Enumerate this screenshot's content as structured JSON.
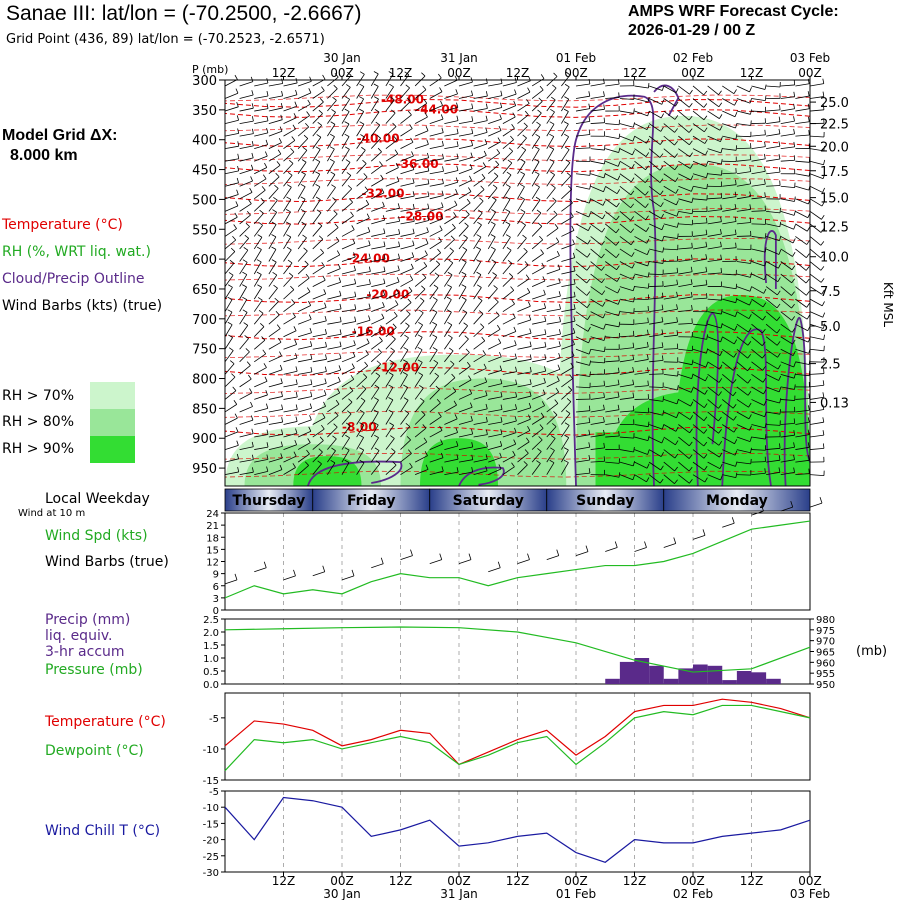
{
  "header": {
    "title": "Sanae III:  lat/lon = (-70.2500, -2.6667)",
    "grid_point": "Grid Point (436, 89) lat/lon = (-70.2523, -2.6571)",
    "cycle_line1": "AMPS WRF Forecast Cycle:",
    "cycle_line2": "2026-01-29 / 00  Z"
  },
  "colors": {
    "temperature": "#e00000",
    "rh": "#22bb22",
    "cloud_outline": "#5a2a8a",
    "wind_chill": "#1a1aa0",
    "precip": "#5a2a8a",
    "rh70": "#ccf5cc",
    "rh80": "#99e699",
    "rh90": "#33dd33",
    "weekday_bar": "#3a4f9a"
  },
  "time_axis": {
    "top_ticks": [
      "12Z",
      "00Z",
      "12Z",
      "00Z",
      "12Z",
      "00Z",
      "12Z",
      "00Z",
      "12Z",
      "00Z"
    ],
    "dates": [
      "30 Jan",
      "31 Jan",
      "01 Feb",
      "02 Feb",
      "03 Feb"
    ],
    "weekdays": [
      "Thursday",
      "Friday",
      "Saturday",
      "Sunday",
      "Monday"
    ]
  },
  "left_labels": {
    "model_grid_1": "Model Grid ΔX:",
    "model_grid_2": "8.000 km",
    "temperature": "Temperature (°C)",
    "rh": "RH (%, WRT liq. wat.)",
    "cloud": "Cloud/Precip Outline",
    "wind_barbs": "Wind Barbs (kts) (true)",
    "rh70": "RH > 70%",
    "rh80": "RH > 80%",
    "rh90": "RH > 90%",
    "local_weekday": "Local Weekday",
    "wind_10m": "Wind at 10 m",
    "wind_spd": "Wind Spd (kts)",
    "wind_barbs2": "Wind Barbs (true)",
    "precip1": "Precip (mm)",
    "precip2": "liq. equiv.",
    "precip3": "3-hr accum",
    "pressure": "Pressure (mb)",
    "temp2": "Temperature (°C)",
    "dewpoint": "Dewpoint (°C)",
    "windchill": "Wind Chill T (°C)"
  },
  "chart_data": [
    {
      "type": "heatmap",
      "name": "cross-section",
      "p_label": "P (mb)",
      "y_right_label": "Kft MSL",
      "pressure_ticks": [
        300,
        350,
        400,
        450,
        500,
        550,
        600,
        650,
        700,
        750,
        800,
        850,
        900,
        950
      ],
      "height_ticks": [
        "25.0",
        "22.5",
        "20.0",
        "17.5",
        "15.0",
        "12.5",
        "10.0",
        "7.5",
        "5.0",
        "2.5",
        "0.13"
      ],
      "height_levels_mb": [
        337,
        373,
        411,
        452,
        497,
        545,
        596,
        653,
        712,
        775,
        840,
        970
      ],
      "temperature_labels": [
        {
          "t": "-48.00",
          "h": 32,
          "p": 339
        },
        {
          "t": "-44.00",
          "h": 39,
          "p": 356
        },
        {
          "t": "-40.00",
          "h": 27,
          "p": 405
        },
        {
          "t": "-36.00",
          "h": 35,
          "p": 447
        },
        {
          "t": "-32.00",
          "h": 28,
          "p": 497
        },
        {
          "t": "-28.00",
          "h": 36,
          "p": 535
        },
        {
          "t": "-24.00",
          "h": 25,
          "p": 606
        },
        {
          "t": "-20.00",
          "h": 29,
          "p": 666
        },
        {
          "t": "-16.00",
          "h": 26,
          "p": 728
        },
        {
          "t": "-12.00",
          "h": 31,
          "p": 788
        },
        {
          "t": "-8.00",
          "h": 24,
          "p": 888
        }
      ]
    },
    {
      "type": "line",
      "name": "wind",
      "ylim": [
        0,
        24
      ],
      "yticks": [
        0,
        3,
        6,
        9,
        12,
        15,
        18,
        21,
        24
      ],
      "x_hours": [
        0,
        6,
        12,
        18,
        24,
        30,
        36,
        42,
        48,
        54,
        60,
        66,
        72,
        78,
        84,
        90,
        96,
        102,
        108,
        114,
        120
      ],
      "series": [
        {
          "values": [
            3,
            6,
            4,
            5,
            4,
            7,
            9,
            8,
            8,
            6,
            8,
            9,
            10,
            11,
            11,
            12,
            14,
            17,
            20,
            21,
            22
          ]
        }
      ]
    },
    {
      "type": "bar",
      "name": "precip-pressure",
      "ylim_precip": [
        0,
        2.5
      ],
      "precip_ticks": [
        "0.0",
        "0.5",
        "1.0",
        "1.5",
        "2.0",
        "2.5"
      ],
      "ylim_pressure": [
        950,
        980
      ],
      "pressure_ticks": [
        950,
        955,
        960,
        965,
        970,
        975,
        980
      ],
      "pressure_unit": "(mb)",
      "precip_bars": [
        {
          "start": 78,
          "end": 81,
          "value": 0.2
        },
        {
          "start": 81,
          "end": 84,
          "value": 0.85
        },
        {
          "start": 84,
          "end": 87,
          "value": 1.0
        },
        {
          "start": 87,
          "end": 90,
          "value": 0.7
        },
        {
          "start": 90,
          "end": 93,
          "value": 0.2
        },
        {
          "start": 93,
          "end": 96,
          "value": 0.6
        },
        {
          "start": 96,
          "end": 99,
          "value": 0.75
        },
        {
          "start": 99,
          "end": 102,
          "value": 0.7
        },
        {
          "start": 102,
          "end": 105,
          "value": 0.15
        },
        {
          "start": 105,
          "end": 108,
          "value": 0.5
        },
        {
          "start": 108,
          "end": 111,
          "value": 0.45
        },
        {
          "start": 111,
          "end": 114,
          "value": 0.2
        }
      ],
      "pressure_x": [
        0,
        12,
        24,
        36,
        48,
        60,
        72,
        84,
        96,
        108,
        120
      ],
      "pressure_values": [
        975,
        975.5,
        976,
        976.3,
        976,
        974,
        969,
        961,
        955.5,
        957,
        967
      ]
    },
    {
      "type": "line",
      "name": "temperature-dewpoint",
      "ylim": [
        -15,
        -1
      ],
      "yticks": [
        -15,
        -10,
        -5
      ],
      "x_hours": [
        0,
        6,
        12,
        18,
        24,
        30,
        36,
        42,
        48,
        54,
        60,
        66,
        72,
        78,
        84,
        90,
        96,
        102,
        108,
        114,
        120
      ],
      "series": [
        {
          "values": [
            -9.5,
            -5.5,
            -6,
            -7,
            -9.5,
            -8.5,
            -7,
            -7.5,
            -12.5,
            -10.5,
            -8.5,
            -7,
            -11,
            -8,
            -4,
            -3,
            -3,
            -2,
            -2.5,
            -3.5,
            -5
          ]
        },
        {
          "values": [
            -13.5,
            -8.5,
            -9,
            -8.5,
            -10,
            -9,
            -8,
            -9,
            -12.5,
            -11,
            -9,
            -8,
            -12.5,
            -9,
            -5,
            -4,
            -4.5,
            -3,
            -3,
            -4,
            -5
          ]
        }
      ]
    },
    {
      "type": "line",
      "name": "wind-chill",
      "ylim": [
        -30,
        -5
      ],
      "yticks": [
        -30,
        -25,
        -20,
        -15,
        -10,
        -5
      ],
      "x_hours": [
        0,
        6,
        12,
        18,
        24,
        30,
        36,
        42,
        48,
        54,
        60,
        66,
        72,
        78,
        84,
        90,
        96,
        102,
        108,
        114,
        120
      ],
      "series": [
        {
          "values": [
            -10,
            -20,
            -7,
            -8,
            -10,
            -19,
            -17,
            -14,
            -22,
            -21,
            -19,
            -18,
            -24,
            -27,
            -20,
            -21,
            -21,
            -19,
            -18,
            -17,
            -14
          ]
        }
      ]
    }
  ]
}
